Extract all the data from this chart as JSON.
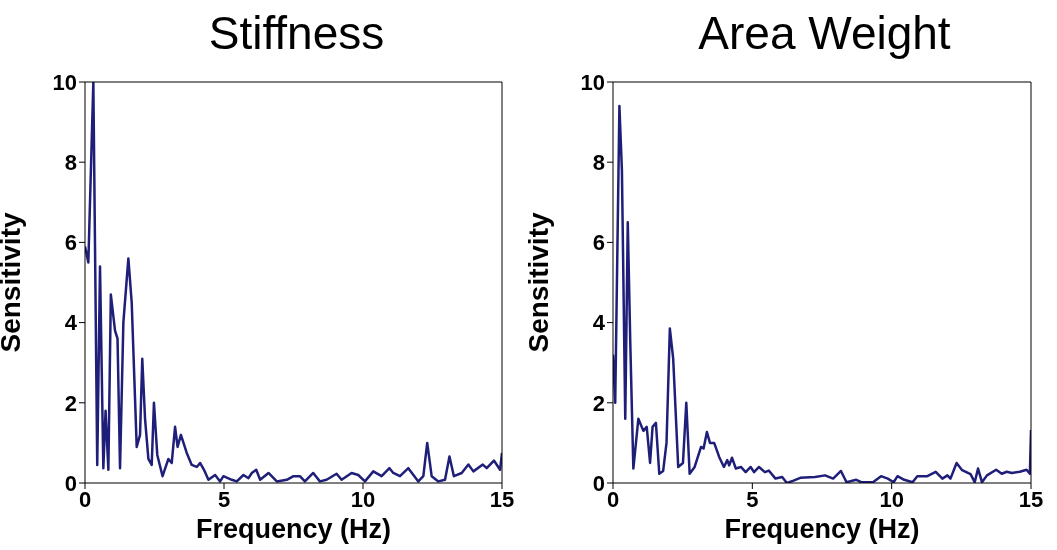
{
  "chart_data": [
    {
      "type": "line",
      "title": "Stiffness",
      "xlabel": "Frequency (Hz)",
      "ylabel": "Sensitivity",
      "xlim": [
        0,
        15
      ],
      "xticks": [
        0,
        5,
        10,
        15
      ],
      "ylim": [
        0,
        10
      ],
      "yticks": [
        0,
        2,
        4,
        6,
        8,
        10
      ],
      "grid": false,
      "legend": false,
      "series": [
        {
          "color": "#1f1f7a",
          "x": [
            0,
            0.12,
            0.3,
            0.44,
            0.54,
            0.66,
            0.74,
            0.84,
            0.93,
            1.08,
            1.17,
            1.26,
            1.38,
            1.56,
            1.68,
            1.86,
            1.98,
            2.06,
            2.16,
            2.28,
            2.4,
            2.48,
            2.6,
            2.79,
            3.0,
            3.12,
            3.24,
            3.33,
            3.45,
            3.66,
            3.84,
            4.02,
            4.14,
            4.28,
            4.44,
            4.68,
            4.86,
            4.98,
            5.28,
            5.46,
            5.7,
            5.88,
            6.0,
            6.16,
            6.3,
            6.6,
            6.9,
            7.26,
            7.5,
            7.73,
            7.91,
            8.21,
            8.45,
            8.69,
            9.05,
            9.23,
            9.59,
            9.83,
            10.07,
            10.37,
            10.67,
            10.95,
            11.09,
            11.33,
            11.63,
            11.99,
            12.17,
            12.31,
            12.47,
            12.71,
            12.95,
            13.11,
            13.27,
            13.55,
            13.79,
            13.97,
            14.31,
            14.45,
            14.71,
            14.93,
            15
          ],
          "values": [
            5.9,
            5.5,
            10,
            0.45,
            5.4,
            0.37,
            1.8,
            0.33,
            4.7,
            3.8,
            3.6,
            0.37,
            4.0,
            5.6,
            4.5,
            0.9,
            1.2,
            3.1,
            1.6,
            0.6,
            0.45,
            2.0,
            0.7,
            0.17,
            0.6,
            0.5,
            1.4,
            0.9,
            1.2,
            0.75,
            0.45,
            0.4,
            0.5,
            0.33,
            0.08,
            0.2,
            0.04,
            0.17,
            0.08,
            0.04,
            0.2,
            0.12,
            0.25,
            0.33,
            0.08,
            0.25,
            0.04,
            0.08,
            0.17,
            0.17,
            0.04,
            0.25,
            0.04,
            0.08,
            0.23,
            0.08,
            0.25,
            0.2,
            0.04,
            0.29,
            0.17,
            0.37,
            0.25,
            0.17,
            0.37,
            0.04,
            0.17,
            1.0,
            0.17,
            0.04,
            0.08,
            0.66,
            0.17,
            0.25,
            0.46,
            0.29,
            0.46,
            0.37,
            0.56,
            0.33,
            0.75
          ]
        }
      ]
    },
    {
      "type": "line",
      "title": "Area Weight",
      "xlabel": "Frequency (Hz)",
      "ylabel": "Sensitivity",
      "xlim": [
        0,
        15
      ],
      "xticks": [
        0,
        5,
        10,
        15
      ],
      "ylim": [
        0,
        10
      ],
      "yticks": [
        0,
        2,
        4,
        6,
        8,
        10
      ],
      "grid": false,
      "legend": false,
      "series": [
        {
          "color": "#1f1f7a",
          "x": [
            0,
            0.08,
            0.23,
            0.32,
            0.44,
            0.53,
            0.62,
            0.73,
            0.91,
            1.09,
            1.21,
            1.33,
            1.42,
            1.54,
            1.66,
            1.8,
            1.92,
            2.04,
            2.16,
            2.34,
            2.51,
            2.63,
            2.75,
            2.93,
            3.16,
            3.25,
            3.37,
            3.48,
            3.63,
            3.81,
            3.98,
            4.1,
            4.17,
            4.27,
            4.41,
            4.59,
            4.76,
            4.94,
            5.06,
            5.24,
            5.45,
            5.59,
            5.83,
            6.07,
            6.24,
            6.48,
            6.72,
            7.25,
            7.61,
            7.9,
            8.18,
            8.38,
            8.73,
            8.91,
            9.33,
            9.62,
            9.86,
            10.07,
            10.21,
            10.45,
            10.75,
            10.92,
            11.28,
            11.58,
            11.82,
            12.0,
            12.11,
            12.33,
            12.53,
            12.83,
            12.98,
            13.1,
            13.24,
            13.42,
            13.75,
            13.95,
            14.13,
            14.31,
            14.6,
            14.84,
            14.96,
            15
          ],
          "values": [
            3.2,
            2.0,
            9.4,
            7.8,
            1.6,
            6.5,
            3.5,
            0.36,
            1.6,
            1.3,
            1.4,
            0.5,
            1.4,
            1.5,
            0.23,
            0.3,
            1.0,
            3.85,
            3.1,
            0.4,
            0.5,
            2.0,
            0.23,
            0.4,
            0.9,
            0.86,
            1.27,
            1.0,
            1.0,
            0.65,
            0.4,
            0.57,
            0.44,
            0.63,
            0.36,
            0.4,
            0.27,
            0.4,
            0.27,
            0.4,
            0.27,
            0.31,
            0.11,
            0.15,
            0.0,
            0.06,
            0.13,
            0.15,
            0.19,
            0.11,
            0.3,
            0.02,
            0.08,
            0.02,
            0.02,
            0.17,
            0.11,
            0.02,
            0.17,
            0.08,
            0.02,
            0.17,
            0.17,
            0.28,
            0.11,
            0.19,
            0.11,
            0.5,
            0.32,
            0.22,
            0.02,
            0.36,
            0.02,
            0.19,
            0.33,
            0.23,
            0.28,
            0.25,
            0.28,
            0.33,
            0.23,
            1.32
          ]
        }
      ]
    }
  ]
}
